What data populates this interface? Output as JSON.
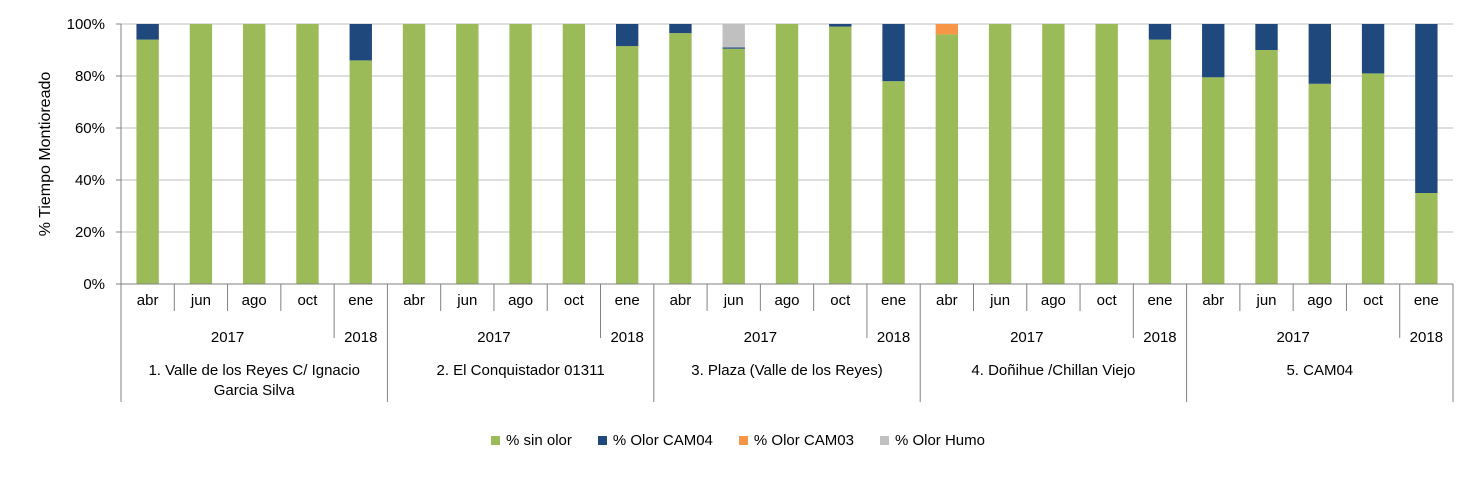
{
  "chart_data": {
    "type": "bar",
    "stacked": true,
    "ylabel": "% Tiempo Montioreado",
    "ylim": [
      0,
      100
    ],
    "yticks": [
      0,
      20,
      40,
      60,
      80,
      100
    ],
    "ytick_labels": [
      "0%",
      "20%",
      "40%",
      "60%",
      "80%",
      "100%"
    ],
    "grid": "horizontal",
    "legend_position": "bottom-center",
    "groups": [
      {
        "name": "1. Valle de los Reyes C/ Ignacio Garcia Silva",
        "years": [
          {
            "label": "2017",
            "months": [
              "abr",
              "jun",
              "ago",
              "oct"
            ]
          },
          {
            "label": "2018",
            "months": [
              "ene"
            ]
          }
        ]
      },
      {
        "name": "2. El Conquistador 01311",
        "years": [
          {
            "label": "2017",
            "months": [
              "abr",
              "jun",
              "ago",
              "oct"
            ]
          },
          {
            "label": "2018",
            "months": [
              "ene"
            ]
          }
        ]
      },
      {
        "name": "3. Plaza (Valle de los Reyes)",
        "years": [
          {
            "label": "2017",
            "months": [
              "abr",
              "jun",
              "ago",
              "oct"
            ]
          },
          {
            "label": "2018",
            "months": [
              "ene"
            ]
          }
        ]
      },
      {
        "name": "4. Doñihue /Chillan Viejo",
        "years": [
          {
            "label": "2017",
            "months": [
              "abr",
              "jun",
              "ago",
              "oct"
            ]
          },
          {
            "label": "2018",
            "months": [
              "ene"
            ]
          }
        ]
      },
      {
        "name": "5. CAM04",
        "years": [
          {
            "label": "2017",
            "months": [
              "abr",
              "jun",
              "ago",
              "oct"
            ]
          },
          {
            "label": "2018",
            "months": [
              "ene"
            ]
          }
        ]
      }
    ],
    "series": [
      {
        "name": "% sin olor",
        "color": "#9BBB59",
        "values": [
          94,
          100,
          100,
          100,
          86,
          100,
          100,
          100,
          100,
          91.5,
          96.5,
          90.5,
          100,
          99,
          78,
          96,
          100,
          100,
          100,
          94,
          79.5,
          90,
          77,
          81,
          35
        ]
      },
      {
        "name": "% Olor CAM04",
        "color": "#1F497D",
        "values": [
          6,
          0,
          0,
          0,
          14,
          0,
          0,
          0,
          0,
          8.5,
          3.5,
          0.5,
          0,
          1,
          22,
          0,
          0,
          0,
          0,
          6,
          20.5,
          10,
          23,
          19,
          65
        ]
      },
      {
        "name": "% Olor CAM03",
        "color": "#F79646",
        "values": [
          0,
          0,
          0,
          0,
          0,
          0,
          0,
          0,
          0,
          0,
          0,
          0,
          0,
          0,
          0,
          4,
          0,
          0,
          0,
          0,
          0,
          0,
          0,
          0,
          0
        ]
      },
      {
        "name": "% Olor Humo",
        "color": "#C0C0C0",
        "values": [
          0,
          0,
          0,
          0,
          0,
          0,
          0,
          0,
          0,
          0,
          0,
          9,
          0,
          0,
          0,
          0,
          0,
          0,
          0,
          0,
          0,
          0,
          0,
          0,
          0
        ]
      }
    ]
  }
}
